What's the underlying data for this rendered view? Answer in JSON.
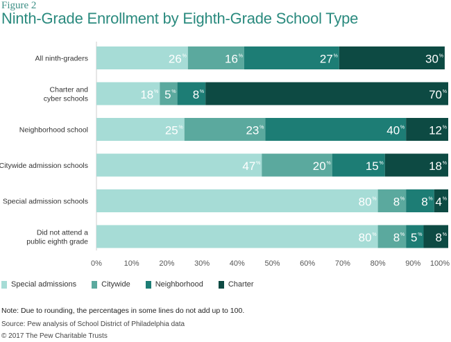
{
  "figure_label": "Figure 2",
  "chart_data": {
    "type": "bar",
    "orientation": "horizontal",
    "stacked": true,
    "title": "Ninth-Grade Enrollment by Eighth-Grade School Type",
    "categories": [
      [
        "All ninth-graders"
      ],
      [
        "Charter and",
        "cyber schools"
      ],
      [
        "Neighborhood school"
      ],
      [
        "Citywide admission schools"
      ],
      [
        "Special admission schools"
      ],
      [
        "Did not attend a",
        "public eighth grade"
      ]
    ],
    "series": [
      {
        "name": "Special admissions",
        "color": "#a6dcd6",
        "values": [
          26,
          18,
          25,
          47,
          80,
          80
        ]
      },
      {
        "name": "Citywide",
        "color": "#5ba99e",
        "values": [
          16,
          5,
          23,
          20,
          8,
          8
        ]
      },
      {
        "name": "Neighborhood",
        "color": "#1d7d75",
        "values": [
          27,
          8,
          40,
          15,
          8,
          5
        ]
      },
      {
        "name": "Charter",
        "color": "#0d4a43",
        "values": [
          30,
          70,
          12,
          18,
          4,
          8
        ]
      }
    ],
    "x_ticks": [
      "0%",
      "10%",
      "20%",
      "30%",
      "40%",
      "50%",
      "60%",
      "70%",
      "80%",
      "90%",
      "100%"
    ],
    "xlim": [
      0,
      100
    ],
    "value_suffix": "%",
    "legend_position": "bottom-left"
  },
  "note": "Note: Due to rounding, the percentages in some lines do not add up to 100.",
  "source": "Source: Pew analysis of School District of Philadelphia data",
  "copyright": "© 2017 The Pew Charitable Trusts"
}
